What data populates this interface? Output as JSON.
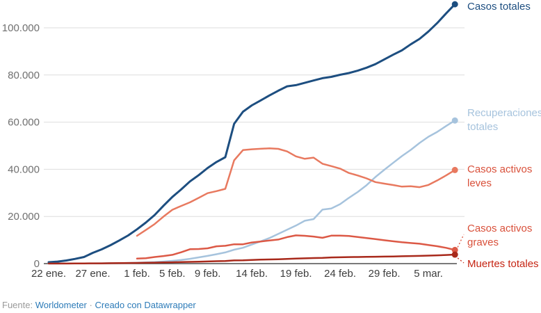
{
  "footer": {
    "source_label": "Fuente:",
    "source_name": "Worldometer",
    "separator": "·",
    "credit": "Creado con Datawrapper"
  },
  "colors": {
    "grid": "#dddddd",
    "baseline": "#4f4f4f",
    "y_tick_text": "#707070",
    "x_tick_text": "#3d3d3d",
    "background": "#ffffff"
  },
  "chart_data": {
    "type": "line",
    "title": "",
    "xlabel": "",
    "ylabel": "",
    "grid": true,
    "legend_position": "right-direct-labels",
    "ylim": [
      0,
      110000
    ],
    "y_tick_values": [
      0,
      20000,
      40000,
      60000,
      80000,
      100000
    ],
    "y_tick_labels": [
      "0",
      "20.000",
      "40.000",
      "60.000",
      "80.000",
      "100.000"
    ],
    "x_tick_labels": [
      "22 ene.",
      "27 ene.",
      "1 feb.",
      "5 feb.",
      "9 feb.",
      "14 feb.",
      "19 feb.",
      "24 feb.",
      "29 feb.",
      "5 mar."
    ],
    "x_tick_indices": [
      0,
      5,
      10,
      14,
      18,
      23,
      28,
      33,
      38,
      43
    ],
    "dates": [
      "22 ene.",
      "23 ene.",
      "24 ene.",
      "25 ene.",
      "26 ene.",
      "27 ene.",
      "28 ene.",
      "29 ene.",
      "30 ene.",
      "31 ene.",
      "1 feb.",
      "2 feb.",
      "3 feb.",
      "4 feb.",
      "5 feb.",
      "6 feb.",
      "7 feb.",
      "8 feb.",
      "9 feb.",
      "10 feb.",
      "11 feb.",
      "12 feb.",
      "13 feb.",
      "14 feb.",
      "15 feb.",
      "16 feb.",
      "17 feb.",
      "18 feb.",
      "19 feb.",
      "20 feb.",
      "21 feb.",
      "22 feb.",
      "23 feb.",
      "24 feb.",
      "25 feb.",
      "26 feb.",
      "27 feb.",
      "28 feb.",
      "29 feb.",
      "1 mar.",
      "2 mar.",
      "3 mar.",
      "4 mar.",
      "5 mar.",
      "6 mar.",
      "7 mar.",
      "8 mar."
    ],
    "series": [
      {
        "name": "Casos totales",
        "label_lines": [
          "Casos totales"
        ],
        "color": "#1d4e80",
        "label_color": "#1d4e80",
        "start_index": 0,
        "values": [
          580,
          845,
          1317,
          2015,
          2800,
          4581,
          6058,
          7813,
          9823,
          11950,
          14553,
          17391,
          20630,
          24545,
          28266,
          31439,
          34876,
          37552,
          40553,
          43099,
          45134,
          59287,
          64438,
          67100,
          69197,
          71329,
          73332,
          75184,
          75700,
          76677,
          77673,
          78651,
          79205,
          80087,
          80828,
          81820,
          83112,
          84615,
          86604,
          88585,
          90443,
          93016,
          95314,
          98425,
          102050,
          106099,
          109991
        ]
      },
      {
        "name": "Recuperaciones totales",
        "label_lines": [
          "Recuperaciones",
          "totales"
        ],
        "color": "#a6c3dd",
        "label_color": "#a6c3dd",
        "start_index": 0,
        "values": [
          30,
          38,
          49,
          54,
          61,
          103,
          130,
          171,
          187,
          252,
          340,
          487,
          644,
          899,
          1166,
          1540,
          2050,
          2649,
          3281,
          3996,
          4749,
          5911,
          6723,
          8096,
          9419,
          10865,
          12583,
          14352,
          16121,
          18177,
          18890,
          22886,
          23394,
          25227,
          27905,
          30384,
          33277,
          36711,
          39782,
          42716,
          45602,
          48228,
          51171,
          53797,
          55866,
          58358,
          60694
        ]
      },
      {
        "name": "Casos activos leves",
        "label_lines": [
          "Casos activos",
          "leves"
        ],
        "color": "#e8795f",
        "label_color": "#d9503a",
        "start_index": 10,
        "values": [
          11798,
          14246,
          16772,
          19935,
          22824,
          24440,
          26001,
          27902,
          29878,
          30752,
          31718,
          43803,
          48128,
          48509,
          48716,
          48878,
          48674,
          47590,
          45476,
          44464,
          44946,
          42371,
          41348,
          40293,
          38440,
          37367,
          36143,
          34577,
          33921,
          33343,
          32664,
          32844,
          32431,
          33350,
          35273,
          37396,
          39700
        ]
      },
      {
        "name": "Casos activos graves",
        "label_lines": [
          "Casos activos",
          "graves"
        ],
        "color": "#dc5946",
        "label_color": "#d9503a",
        "start_index": 10,
        "connector": true,
        "values": [
          2110,
          2296,
          2788,
          3219,
          3711,
          4821,
          6101,
          6188,
          6484,
          7333,
          7552,
          8204,
          8204,
          8969,
          9393,
          9811,
          10202,
          11233,
          11977,
          11789,
          11477,
          10934,
          11845,
          11868,
          11720,
          11269,
          10834,
          10404,
          9924,
          9476,
          9060,
          8742,
          8426,
          7895,
          7389,
          6684,
          5771
        ]
      },
      {
        "name": "Muertes totales",
        "label_lines": [
          "Muertes totales"
        ],
        "color": "#a8291b",
        "label_color": "#c52412",
        "start_index": 0,
        "connector": true,
        "values": [
          17,
          25,
          41,
          56,
          80,
          106,
          132,
          170,
          213,
          259,
          305,
          362,
          426,
          492,
          565,
          638,
          724,
          813,
          910,
          1018,
          1115,
          1369,
          1383,
          1526,
          1669,
          1775,
          1873,
          2009,
          2126,
          2247,
          2360,
          2460,
          2618,
          2699,
          2763,
          2800,
          2858,
          2923,
          2977,
          3050,
          3117,
          3202,
          3286,
          3383,
          3522,
          3661,
          3826
        ]
      }
    ]
  }
}
